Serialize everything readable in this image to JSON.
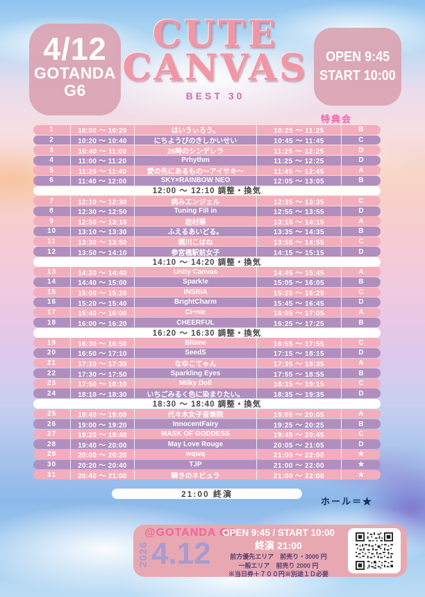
{
  "header": {
    "date": "4/12",
    "venue_line1": "GOTANDA",
    "venue_line2": "G6",
    "title_line1": "CUTE",
    "title_line2": "CANVAS",
    "subtitle": "BEST 30",
    "open_label": "OPEN 9:45",
    "start_label": "START 10:00",
    "tokuten_label": "特典会"
  },
  "schedule": {
    "items": [
      {
        "no": 1,
        "time": "10:00 ～ 10:20",
        "name": "はいうぃろう。",
        "tokuten": "10:25 ～ 11:25",
        "booth": "B"
      },
      {
        "no": 2,
        "time": "10:20 ～ 10:40",
        "name": "にちようびのきしかいせい",
        "tokuten": "10:45 ～ 11:45",
        "booth": "C"
      },
      {
        "no": 3,
        "time": "10:40 ～ 11:00",
        "name": "26時のシンデレラ",
        "tokuten": "11:25 ～ 12:25",
        "booth": "D"
      },
      {
        "no": 4,
        "time": "11:00 ～ 11:20",
        "name": "Prhythm",
        "tokuten": "11:25 ～ 12:25",
        "booth": "D"
      },
      {
        "no": 5,
        "time": "11:20 ～ 11:40",
        "name": "愛の先にあるもの～アイサキ～",
        "tokuten": "11:45 ～ 12:45",
        "booth": "A"
      },
      {
        "no": 6,
        "time": "11:40 ～ 12:00",
        "name": "SKY×RAINBOW NEO",
        "tokuten": "12:05 ～ 13:05",
        "booth": "B"
      },
      {
        "break": "12:00 ～ 12:10 調整・換気"
      },
      {
        "no": 7,
        "time": "12:10 ～ 12:30",
        "name": "病みエンジェル",
        "tokuten": "12:35 ～ 13:35",
        "booth": "C"
      },
      {
        "no": 8,
        "time": "12:30 ～ 12:50",
        "name": "Tuning Fill in",
        "tokuten": "12:55 ～ 13:55",
        "booth": "D"
      },
      {
        "no": 9,
        "time": "12:50 ～ 13:10",
        "name": "岩村華",
        "tokuten": "13:15 ～ 14:15",
        "booth": "A"
      },
      {
        "no": 10,
        "time": "13:10 ～ 13:30",
        "name": "ふえるあいどる。",
        "tokuten": "13:35 ～ 14:35",
        "booth": "B"
      },
      {
        "no": 11,
        "time": "13:30 ～ 13:50",
        "name": "梶川こはね",
        "tokuten": "13:55 ～ 14:55",
        "booth": "C"
      },
      {
        "no": 12,
        "time": "13:50 ～ 14:10",
        "name": "参宮橋駅前女子",
        "tokuten": "14:15 ～ 15:15",
        "booth": "D"
      },
      {
        "break": "14:10 ～ 14:20 調整・換気"
      },
      {
        "no": 13,
        "time": "14:20 ～ 14:40",
        "name": "Unity Canvas",
        "tokuten": "14:45 ～ 15:45",
        "booth": "A"
      },
      {
        "no": 14,
        "time": "14:40 ～ 15:00",
        "name": "Spark!e",
        "tokuten": "15:05 ～ 16:05",
        "booth": "B"
      },
      {
        "no": 15,
        "time": "15:00 ～ 15:20",
        "name": "INSRiA",
        "tokuten": "15:25 ～ 16:25",
        "booth": "C"
      },
      {
        "no": 16,
        "time": "15:20 ～ 15:40",
        "name": "BrightCharm",
        "tokuten": "15:45 ～ 16:45",
        "booth": "D"
      },
      {
        "no": 17,
        "time": "15:40 ～ 16:00",
        "name": "Ci÷nic",
        "tokuten": "16:05 ～ 17:05",
        "booth": "A"
      },
      {
        "no": 18,
        "time": "16:00 ～ 16:20",
        "name": "CHEERFUL",
        "tokuten": "16:25 ～ 17:25",
        "booth": "B"
      },
      {
        "break": "16:20 ～ 16:30 調整・換気"
      },
      {
        "no": 19,
        "time": "16:30 ～ 16:50",
        "name": "Blüme",
        "tokuten": "16:55 ～ 17:55",
        "booth": "C"
      },
      {
        "no": 20,
        "time": "16:50 ～ 17:10",
        "name": "SeedS",
        "tokuten": "17:15 ～ 18:15",
        "booth": "D"
      },
      {
        "no": 21,
        "time": "17:10 ～ 17:30",
        "name": "なゆこてゃん",
        "tokuten": "17:35 ～ 18:35",
        "booth": "A"
      },
      {
        "no": 22,
        "time": "17:30 ～ 17:50",
        "name": "Sparkling Eyes",
        "tokuten": "17:55 ～ 18:55",
        "booth": "B"
      },
      {
        "no": 23,
        "time": "17:50 ～ 18:10",
        "name": "Milky Doll",
        "tokuten": "18:15 ～ 19:15",
        "booth": "C"
      },
      {
        "no": 24,
        "time": "18:10 ～ 18:30",
        "name": "いちごみるく色に染まりたい。",
        "tokuten": "18:35 ～ 19:35",
        "booth": "D"
      },
      {
        "break": "18:30 ～ 18:40 調整・換気"
      },
      {
        "no": 25,
        "time": "18:40 ～ 19:00",
        "name": "代々木女子音楽院",
        "tokuten": "19:05 ～ 20:05",
        "booth": "A"
      },
      {
        "no": 26,
        "time": "19:00 ～ 19:20",
        "name": "InnocentFairy",
        "tokuten": "19:25 ～ 20:25",
        "booth": "B"
      },
      {
        "no": 27,
        "time": "19:20 ～ 19:40",
        "name": "MASK OF GODDESS",
        "tokuten": "19:45 ～ 20:45",
        "booth": "C"
      },
      {
        "no": 28,
        "time": "19:40 ～ 20:00",
        "name": "May Love Rouge",
        "tokuten": "20:05 ～ 21:05",
        "booth": "D"
      },
      {
        "no": 29,
        "time": "20:00 ～ 20:20",
        "name": "wqwq",
        "tokuten": "21:00 ～ 22:00",
        "booth": "★"
      },
      {
        "no": 30,
        "time": "20:20 ～ 20:40",
        "name": "TJP",
        "tokuten": "21:00 ～ 22:00",
        "booth": "★"
      },
      {
        "no": 31,
        "time": "20:40 ～ 21:00",
        "name": "瞬きのネビュラ",
        "tokuten": "21:00 ～ 22:00",
        "booth": "★"
      }
    ],
    "closing_label": "21:00 終演",
    "hall_note": "ホール＝★"
  },
  "footer": {
    "venue_tag": "@GOTANDA G6",
    "year": "2026",
    "date": "4.12",
    "open_start": "OPEN 9:45 / START 10:00",
    "closing": "終演 21:00",
    "price_line1": "前方優先エリア　前売り・3000 円",
    "price_line2": "一般エリア　前売り 2000 円",
    "price_line3": "※当日券＋７００円※別途１Ｄ必要"
  },
  "colors": {
    "row_pink": "#f2aebd",
    "row_mauve": "#b08fbe",
    "accent_pink": "#f45fa8",
    "header_box_pink": "#dba3b2",
    "footer_pink": "#e7a8b2",
    "lavender": "#a79bd0",
    "hall_note_navy": "#1c2b5a"
  }
}
